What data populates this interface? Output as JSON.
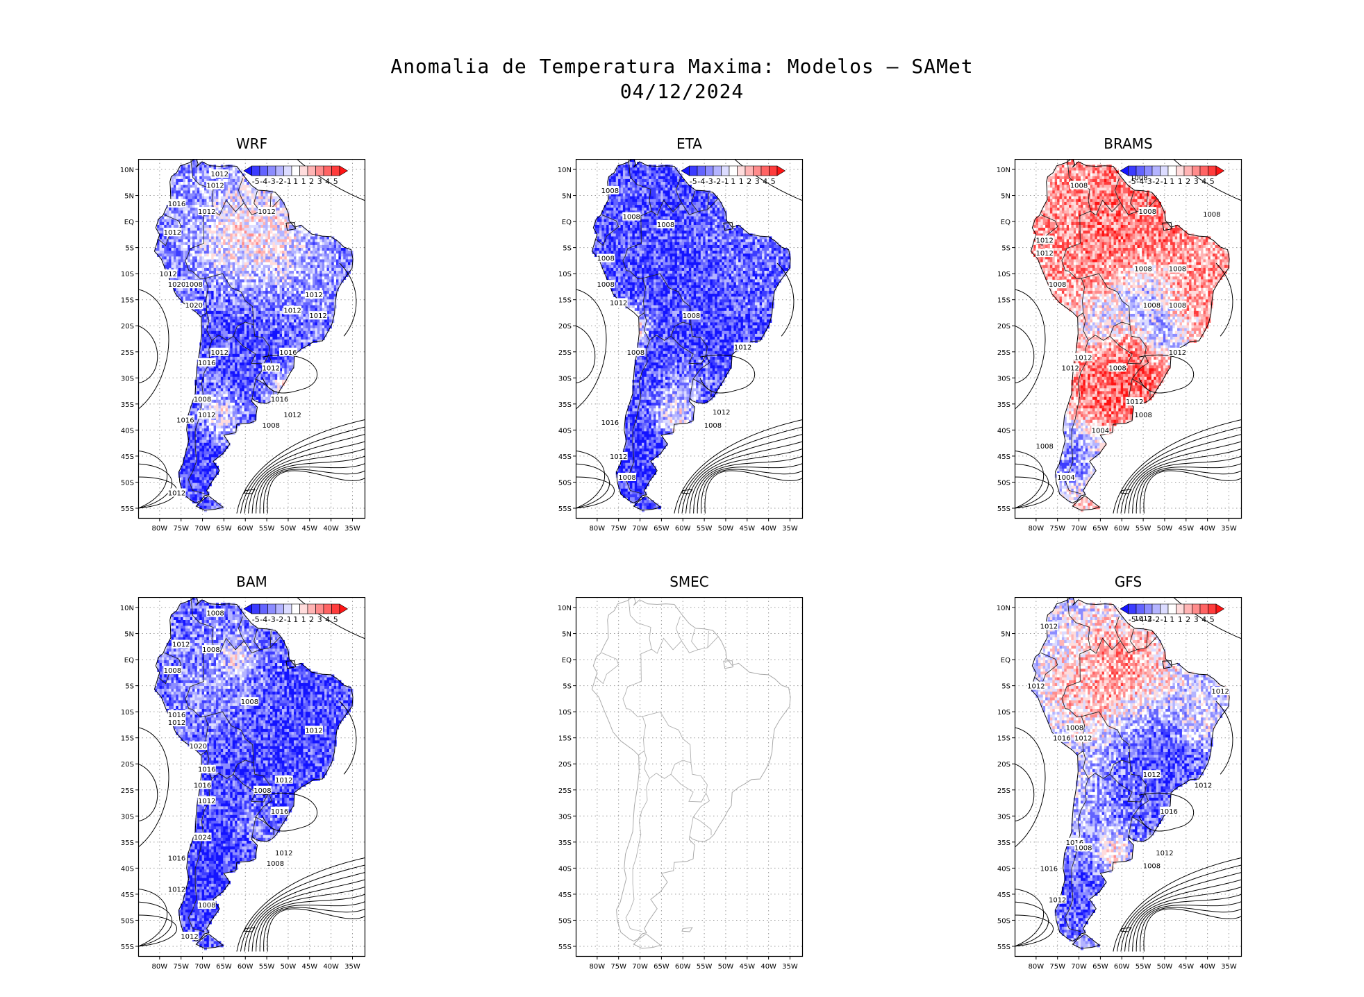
{
  "title": {
    "line1": "Anomalia de Temperatura Maxima: Modelos — SAMet",
    "line2": "04/12/2024"
  },
  "axes": {
    "lat_labels": [
      "10N",
      "5N",
      "EQ",
      "5S",
      "10S",
      "15S",
      "20S",
      "25S",
      "30S",
      "35S",
      "40S",
      "45S",
      "50S",
      "55S"
    ],
    "lon_labels": [
      "80W",
      "75W",
      "70W",
      "65W",
      "60W",
      "55W",
      "50W",
      "45W",
      "40W",
      "35W"
    ]
  },
  "colorbar": {
    "labels": [
      "-5",
      "-4",
      "-3",
      "-2",
      "-1",
      "1",
      "1",
      "2",
      "3",
      "4",
      "5"
    ],
    "colors": [
      "#1414ff",
      "#3c3cff",
      "#6464ff",
      "#8c8cff",
      "#b4b4ff",
      "#dcdcff",
      "#ffffff",
      "#ffdcdc",
      "#ffb4b4",
      "#ff8c8c",
      "#ff6464",
      "#ff3c3c",
      "#ff1414"
    ]
  },
  "panels": [
    {
      "name": "WRF",
      "scheme": "blue",
      "bias": -0.55,
      "empty": false,
      "isobars": [
        {
          "lon": -66,
          "lat": 9.2,
          "label": "1012"
        },
        {
          "lon": -67,
          "lat": 7,
          "label": "1012"
        },
        {
          "lon": -76,
          "lat": 3.5,
          "label": "1016"
        },
        {
          "lon": -77,
          "lat": -2,
          "label": "1012"
        },
        {
          "lon": -69,
          "lat": 2,
          "label": "1012"
        },
        {
          "lon": -55,
          "lat": 2,
          "label": "1012"
        },
        {
          "lon": -78,
          "lat": -10,
          "label": "1012"
        },
        {
          "lon": -76,
          "lat": -12,
          "label": "1020"
        },
        {
          "lon": -72,
          "lat": -12,
          "label": "1008"
        },
        {
          "lon": -72,
          "lat": -16,
          "label": "1020"
        },
        {
          "lon": -44,
          "lat": -14,
          "label": "1012"
        },
        {
          "lon": -49,
          "lat": -17,
          "label": "1012"
        },
        {
          "lon": -43,
          "lat": -18,
          "label": "1012"
        },
        {
          "lon": -66,
          "lat": -25,
          "label": "1012"
        },
        {
          "lon": -69,
          "lat": -27,
          "label": "1016"
        },
        {
          "lon": -50,
          "lat": -25,
          "label": "1016"
        },
        {
          "lon": -54,
          "lat": -28,
          "label": "1012"
        },
        {
          "lon": -52,
          "lat": -34,
          "label": "1016"
        },
        {
          "lon": -70,
          "lat": -34,
          "label": "1008"
        },
        {
          "lon": -69,
          "lat": -37,
          "label": "1012"
        },
        {
          "lon": -74,
          "lat": -38,
          "label": "1016"
        },
        {
          "lon": -49,
          "lat": -37,
          "label": "1012"
        },
        {
          "lon": -54,
          "lat": -39,
          "label": "1008"
        },
        {
          "lon": -76,
          "lat": -52,
          "label": "1012"
        }
      ]
    },
    {
      "name": "ETA",
      "scheme": "blue",
      "bias": -0.7,
      "empty": false,
      "isobars": [
        {
          "lon": -77,
          "lat": 6,
          "label": "1008"
        },
        {
          "lon": -72,
          "lat": 1,
          "label": "1008"
        },
        {
          "lon": -64,
          "lat": -0.5,
          "label": "1008"
        },
        {
          "lon": -78,
          "lat": -7,
          "label": "1008"
        },
        {
          "lon": -78,
          "lat": -12,
          "label": "1008"
        },
        {
          "lon": -75,
          "lat": -15.5,
          "label": "1012"
        },
        {
          "lon": -58,
          "lat": -18,
          "label": "1008"
        },
        {
          "lon": -71,
          "lat": -25,
          "label": "1008"
        },
        {
          "lon": -46,
          "lat": -24,
          "label": "1012"
        },
        {
          "lon": -51,
          "lat": -36.5,
          "label": "1012"
        },
        {
          "lon": -53,
          "lat": -39,
          "label": "1008"
        },
        {
          "lon": -77,
          "lat": -38.5,
          "label": "1016"
        },
        {
          "lon": -75,
          "lat": -45,
          "label": "1012"
        },
        {
          "lon": -73,
          "lat": -49,
          "label": "1008"
        }
      ]
    },
    {
      "name": "BRAMS",
      "scheme": "red",
      "bias": 0.35,
      "empty": false,
      "isobars": [
        {
          "lon": -56,
          "lat": 8.5,
          "label": "1008"
        },
        {
          "lon": -70,
          "lat": 7,
          "label": "1008"
        },
        {
          "lon": -54,
          "lat": 2,
          "label": "1008"
        },
        {
          "lon": -39,
          "lat": 1.5,
          "label": "1008"
        },
        {
          "lon": -78,
          "lat": -3.5,
          "label": "1012"
        },
        {
          "lon": -78,
          "lat": -6,
          "label": "1012"
        },
        {
          "lon": -55,
          "lat": -9,
          "label": "1008"
        },
        {
          "lon": -47,
          "lat": -9,
          "label": "1008"
        },
        {
          "lon": -75,
          "lat": -12,
          "label": "1008"
        },
        {
          "lon": -47,
          "lat": -16,
          "label": "1008"
        },
        {
          "lon": -53,
          "lat": -16,
          "label": "1008"
        },
        {
          "lon": -69,
          "lat": -26,
          "label": "1012"
        },
        {
          "lon": -72,
          "lat": -28,
          "label": "1012"
        },
        {
          "lon": -61,
          "lat": -28,
          "label": "1008"
        },
        {
          "lon": -47,
          "lat": -25,
          "label": "1012"
        },
        {
          "lon": -57,
          "lat": -34.5,
          "label": "1012"
        },
        {
          "lon": -55,
          "lat": -37,
          "label": "1008"
        },
        {
          "lon": -65,
          "lat": -40,
          "label": "1004"
        },
        {
          "lon": -78,
          "lat": -43,
          "label": "1008"
        },
        {
          "lon": -73,
          "lat": -49,
          "label": "1004"
        }
      ]
    },
    {
      "name": "BAM",
      "scheme": "blue",
      "bias": -0.6,
      "empty": false,
      "isobars": [
        {
          "lon": -67,
          "lat": 9,
          "label": "1008"
        },
        {
          "lon": -75,
          "lat": 3,
          "label": "1012"
        },
        {
          "lon": -68,
          "lat": 2,
          "label": "1008"
        },
        {
          "lon": -77,
          "lat": -2,
          "label": "1008"
        },
        {
          "lon": -59,
          "lat": -8,
          "label": "1008"
        },
        {
          "lon": -76,
          "lat": -10.5,
          "label": "1016"
        },
        {
          "lon": -76,
          "lat": -12,
          "label": "1012"
        },
        {
          "lon": -44,
          "lat": -13.5,
          "label": "1012"
        },
        {
          "lon": -71,
          "lat": -16.5,
          "label": "1020"
        },
        {
          "lon": -69,
          "lat": -21,
          "label": "1016"
        },
        {
          "lon": -70,
          "lat": -24,
          "label": "1016"
        },
        {
          "lon": -51,
          "lat": -23,
          "label": "1012"
        },
        {
          "lon": -56,
          "lat": -25,
          "label": "1008"
        },
        {
          "lon": -69,
          "lat": -27,
          "label": "1012"
        },
        {
          "lon": -52,
          "lat": -29,
          "label": "1016"
        },
        {
          "lon": -70,
          "lat": -34,
          "label": "1024"
        },
        {
          "lon": -51,
          "lat": -37,
          "label": "1012"
        },
        {
          "lon": -53,
          "lat": -39,
          "label": "1008"
        },
        {
          "lon": -76,
          "lat": -38,
          "label": "1016"
        },
        {
          "lon": -76,
          "lat": -44,
          "label": "1012"
        },
        {
          "lon": -69,
          "lat": -47,
          "label": "1008"
        },
        {
          "lon": -73,
          "lat": -53,
          "label": "1012"
        }
      ]
    },
    {
      "name": "SMEC",
      "scheme": "none",
      "bias": 0,
      "empty": true,
      "isobars": []
    },
    {
      "name": "GFS",
      "scheme": "mixed",
      "bias": -0.2,
      "empty": false,
      "isobars": [
        {
          "lon": -77,
          "lat": 6.5,
          "label": "1012"
        },
        {
          "lon": -55,
          "lat": 8,
          "label": "1012"
        },
        {
          "lon": -80,
          "lat": -5,
          "label": "1012"
        },
        {
          "lon": -37,
          "lat": -6,
          "label": "1012"
        },
        {
          "lon": -71,
          "lat": -13,
          "label": "1008"
        },
        {
          "lon": -74,
          "lat": -15,
          "label": "1016"
        },
        {
          "lon": -69,
          "lat": -15,
          "label": "1012"
        },
        {
          "lon": -53,
          "lat": -22,
          "label": "1012"
        },
        {
          "lon": -41,
          "lat": -24,
          "label": "1012"
        },
        {
          "lon": -49,
          "lat": -29,
          "label": "1016"
        },
        {
          "lon": -71,
          "lat": -35,
          "label": "1016"
        },
        {
          "lon": -69,
          "lat": -36,
          "label": "1008"
        },
        {
          "lon": -50,
          "lat": -37,
          "label": "1012"
        },
        {
          "lon": -53,
          "lat": -39.5,
          "label": "1008"
        },
        {
          "lon": -77,
          "lat": -40,
          "label": "1016"
        },
        {
          "lon": -75,
          "lat": -46,
          "label": "1012"
        }
      ]
    }
  ]
}
